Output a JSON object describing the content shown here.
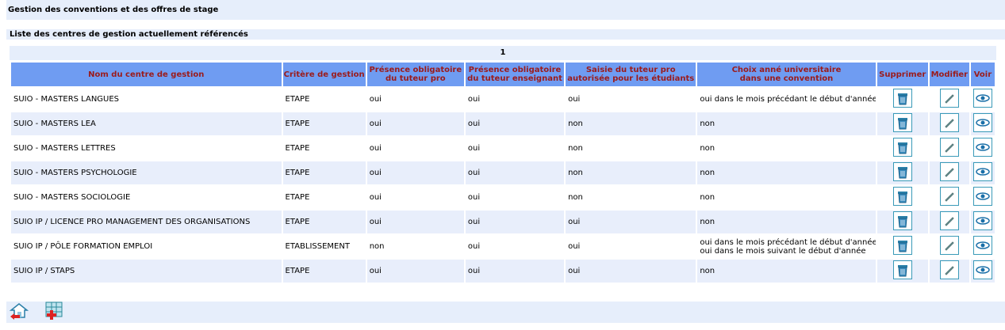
{
  "header": {
    "title": "Gestion des conventions et des offres de stage"
  },
  "list": {
    "title": "Liste des centres de gestion actuellement référencés",
    "page": "1"
  },
  "table": {
    "headers": [
      [
        "Nom du centre de gestion"
      ],
      [
        "Critère de gestion"
      ],
      [
        "Présence obligatoire",
        "du tuteur pro"
      ],
      [
        "Présence obligatoire",
        "du tuteur enseignant"
      ],
      [
        "Saisie du tuteur pro",
        "autorisée pour les étudiants"
      ],
      [
        "Choix anné universitaire",
        "dans une convention"
      ],
      [
        "Supprimer"
      ],
      [
        "Modifier"
      ],
      [
        "Voir"
      ]
    ],
    "rows": [
      [
        "SUIO - MASTERS LANGUES",
        "ETAPE",
        "oui",
        "oui",
        "oui",
        [
          "oui dans le mois précédant le début d'année"
        ]
      ],
      [
        "SUIO - MASTERS LEA",
        "ETAPE",
        "oui",
        "oui",
        "non",
        [
          "non"
        ]
      ],
      [
        "SUIO - MASTERS LETTRES",
        "ETAPE",
        "oui",
        "oui",
        "non",
        [
          "non"
        ]
      ],
      [
        "SUIO - MASTERS PSYCHOLOGIE",
        "ETAPE",
        "oui",
        "oui",
        "non",
        [
          "non"
        ]
      ],
      [
        "SUIO - MASTERS SOCIOLOGIE",
        "ETAPE",
        "oui",
        "oui",
        "non",
        [
          "non"
        ]
      ],
      [
        "SUIO IP / LICENCE PRO MANAGEMENT DES ORGANISATIONS",
        "ETAPE",
        "oui",
        "oui",
        "oui",
        [
          "non"
        ]
      ],
      [
        "SUIO IP / PÔLE FORMATION EMPLOI",
        "ETABLISSEMENT",
        "non",
        "oui",
        "oui",
        [
          "oui dans le mois précédant le début d'année",
          "oui dans le mois suivant le début d'année"
        ]
      ],
      [
        "SUIO IP / STAPS",
        "ETAPE",
        "oui",
        "oui",
        "oui",
        [
          "non"
        ]
      ]
    ]
  }
}
